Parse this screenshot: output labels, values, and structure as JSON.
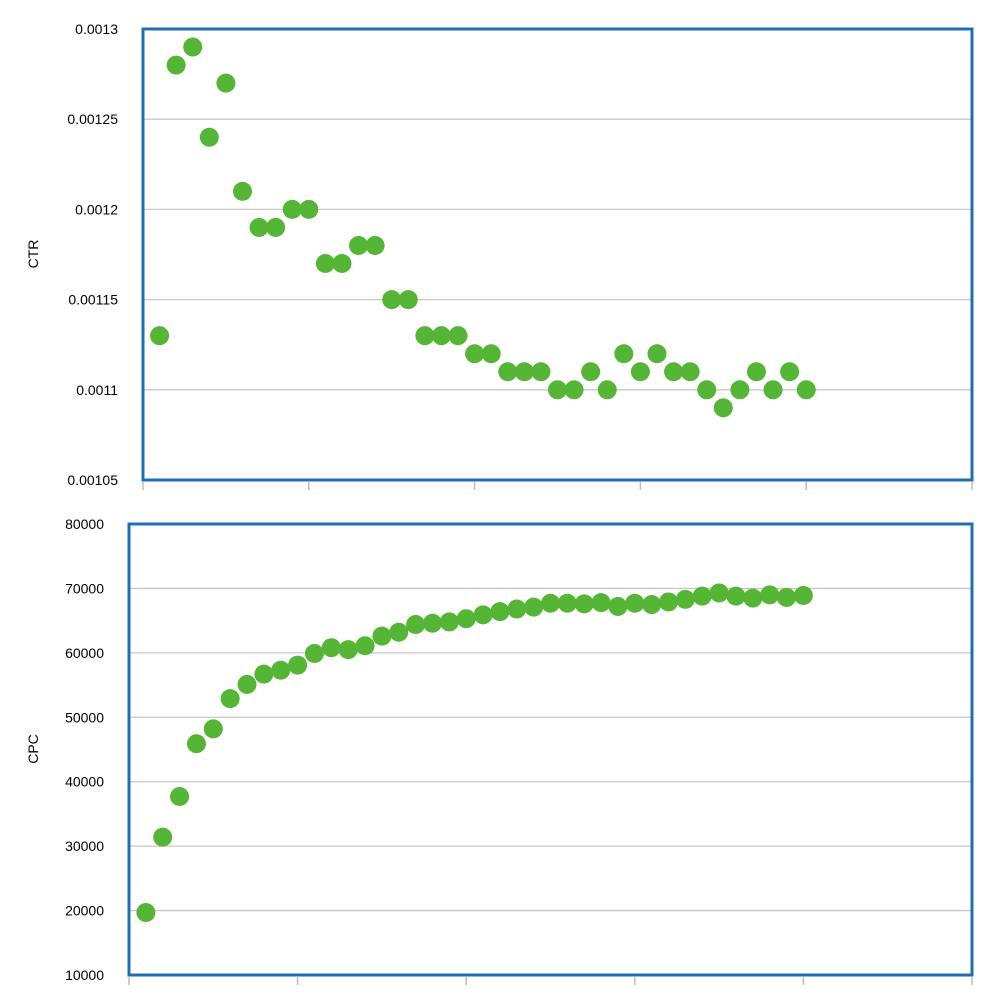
{
  "colors": {
    "frame": "#1f6fb2",
    "marker": "#55b535",
    "grid": "#c8c8c8"
  },
  "chart_data": [
    {
      "type": "scatter",
      "title": "",
      "xlabel": "",
      "ylabel": "CTR",
      "ylim": [
        0.00105,
        0.0013
      ],
      "yticks": [
        "0.00105",
        "0.0011",
        "0.00115",
        "0.0012",
        "0.00125",
        "0.0013"
      ],
      "xlim": [
        0,
        50
      ],
      "grid": true,
      "x": [
        1,
        2,
        3,
        4,
        5,
        6,
        7,
        8,
        9,
        10,
        11,
        12,
        13,
        14,
        15,
        16,
        17,
        18,
        19,
        20,
        21,
        22,
        23,
        24,
        25,
        26,
        27,
        28,
        29,
        30,
        31,
        32,
        33,
        34,
        35,
        36,
        37,
        38,
        39,
        40
      ],
      "y": [
        0.00113,
        0.00128,
        0.00129,
        0.00124,
        0.00127,
        0.00121,
        0.00119,
        0.00119,
        0.0012,
        0.0012,
        0.00117,
        0.00117,
        0.00118,
        0.00118,
        0.00115,
        0.00115,
        0.00113,
        0.00113,
        0.00113,
        0.00112,
        0.00112,
        0.00111,
        0.00111,
        0.00111,
        0.0011,
        0.0011,
        0.00111,
        0.0011,
        0.00112,
        0.00111,
        0.00112,
        0.00111,
        0.00111,
        0.0011,
        0.00109,
        0.0011,
        0.00111,
        0.0011,
        0.00111,
        0.0011
      ]
    },
    {
      "type": "scatter",
      "title": "",
      "xlabel": "",
      "ylabel": "CPC",
      "ylim": [
        10000,
        80000
      ],
      "yticks": [
        "10000",
        "20000",
        "30000",
        "40000",
        "50000",
        "60000",
        "70000",
        "80000"
      ],
      "xlim": [
        0,
        50
      ],
      "grid": true,
      "x": [
        1,
        2,
        3,
        4,
        5,
        6,
        7,
        8,
        9,
        10,
        11,
        12,
        13,
        14,
        15,
        16,
        17,
        18,
        19,
        20,
        21,
        22,
        23,
        24,
        25,
        26,
        27,
        28,
        29,
        30,
        31,
        32,
        33,
        34,
        35,
        36,
        37,
        38,
        39,
        40
      ],
      "y": [
        19700,
        31400,
        37700,
        45900,
        48200,
        52900,
        55100,
        56700,
        57300,
        58100,
        59900,
        60800,
        60500,
        61100,
        62600,
        63200,
        64400,
        64600,
        64800,
        65300,
        65900,
        66400,
        66800,
        67100,
        67700,
        67700,
        67600,
        67800,
        67200,
        67700,
        67500,
        67900,
        68300,
        68800,
        69300,
        68800,
        68500,
        69000,
        68600,
        68900
      ]
    }
  ]
}
